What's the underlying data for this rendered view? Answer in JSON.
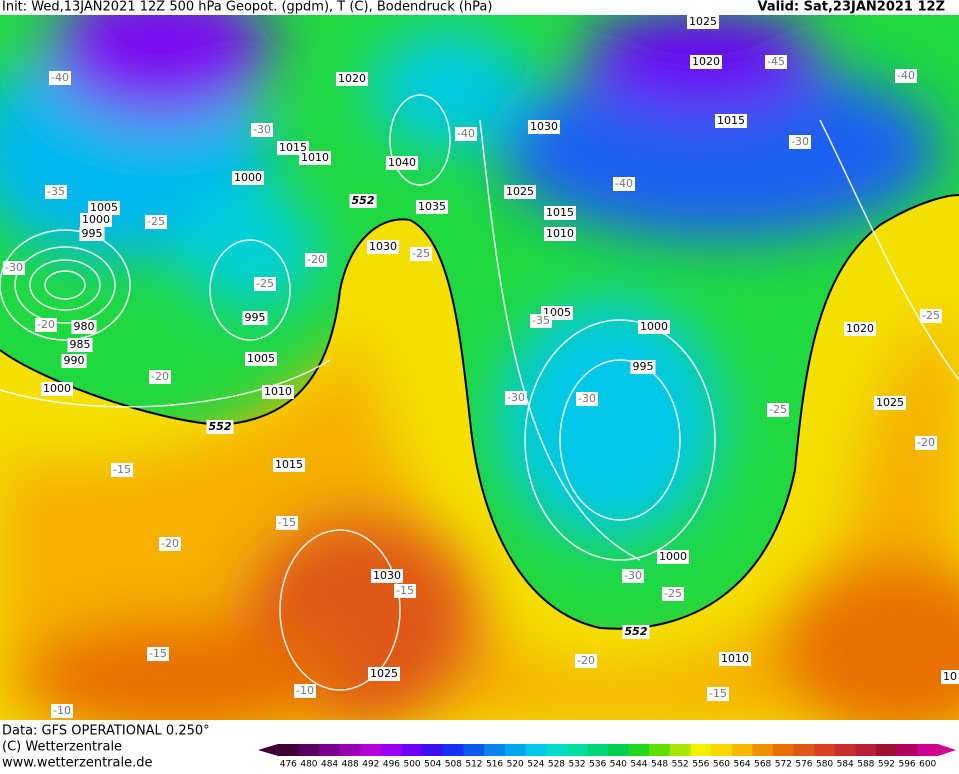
{
  "header": {
    "init": "Init: Wed,13JAN2021 12Z 500 hPa Geopot. (gpdm), T (C), Bodendruck (hPa)",
    "valid": "Valid: Sat,23JAN2021 12Z"
  },
  "map": {
    "isobar_labels": [
      1025,
      1020,
      1020,
      1030,
      1015,
      1015,
      1010,
      1040,
      1000,
      1025,
      1035,
      1005,
      1000,
      995,
      1015,
      1010,
      1030,
      995,
      1005,
      1000,
      980,
      985,
      990,
      1005,
      995,
      1000,
      1010,
      1020,
      1025,
      1015,
      1030,
      1000,
      1025,
      1010,
      10
    ],
    "temperature_labels": [
      -40,
      -45,
      -40,
      -30,
      -40,
      -30,
      -40,
      -35,
      -25,
      -20,
      -25,
      -25,
      -30,
      -20,
      -35,
      -20,
      -30,
      -30,
      -25,
      -25,
      -20,
      -15,
      -15,
      -20,
      -15,
      -30,
      -25,
      -15,
      -20,
      -10,
      -15,
      -10
    ],
    "height_labels": [
      552,
      552,
      552
    ]
  },
  "footer": {
    "data": "Data: GFS OPERATIONAL 0.250°",
    "copyright": "(C) Wetterzentrale",
    "url": "www.wetterzentrale.de"
  },
  "colorbar": {
    "labels": [
      476,
      480,
      484,
      488,
      492,
      496,
      500,
      504,
      508,
      512,
      516,
      520,
      524,
      528,
      532,
      536,
      540,
      544,
      548,
      552,
      556,
      560,
      564,
      568,
      572,
      576,
      580,
      584,
      588,
      592,
      596,
      600
    ],
    "colors": [
      "#3d0035",
      "#5a0060",
      "#7a0090",
      "#9900b3",
      "#b300d9",
      "#9a00f0",
      "#6a00f5",
      "#3a10f0",
      "#1a30f0",
      "#0a5af0",
      "#0a85f0",
      "#00a8f0",
      "#00c8e8",
      "#00dcc8",
      "#00e0a0",
      "#00d878",
      "#00d050",
      "#20d820",
      "#60e000",
      "#a8e800",
      "#f0f000",
      "#f8d800",
      "#f8b800",
      "#f09000",
      "#e87000",
      "#e05818",
      "#d84020",
      "#c83030",
      "#b82038",
      "#a01030",
      "#b00060",
      "#d00090"
    ]
  }
}
